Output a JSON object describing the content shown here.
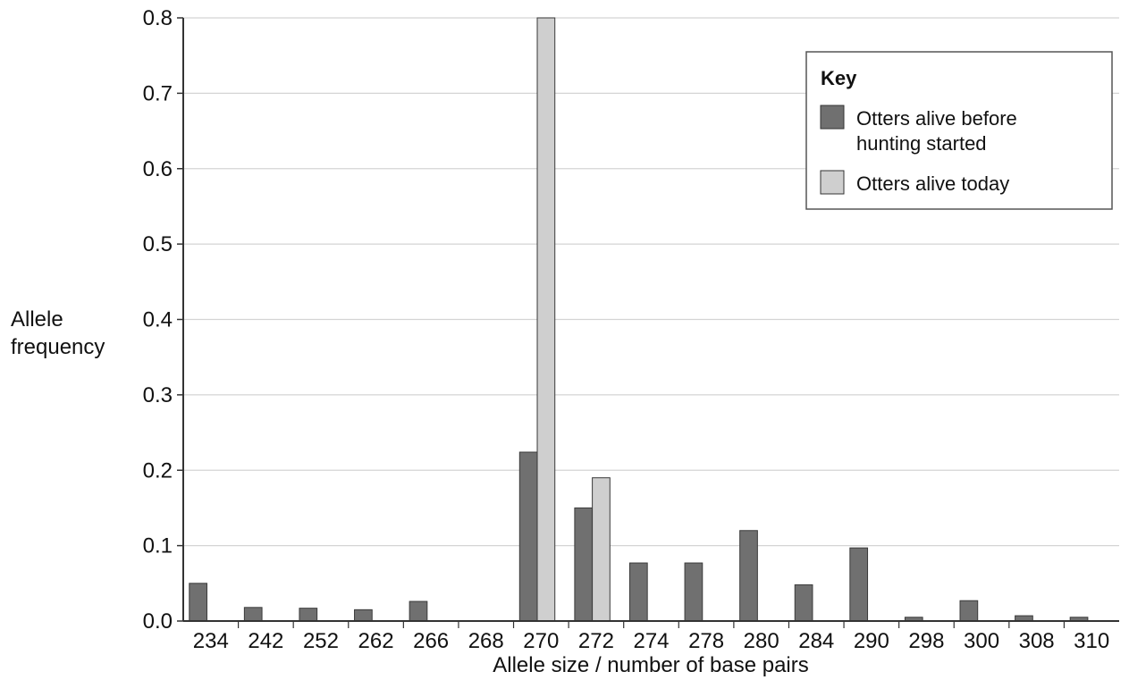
{
  "chart_data": {
    "type": "bar",
    "xlabel": "Allele size / number of base pairs",
    "ylabel": [
      "Allele",
      "frequency"
    ],
    "ylim": [
      0,
      0.8
    ],
    "yticks": [
      "0.0",
      "0.1",
      "0.2",
      "0.3",
      "0.4",
      "0.5",
      "0.6",
      "0.7",
      "0.8"
    ],
    "grid": "horizontal",
    "legend_position": "top-right",
    "categories": [
      "234",
      "242",
      "252",
      "262",
      "266",
      "268",
      "270",
      "272",
      "274",
      "278",
      "280",
      "284",
      "290",
      "298",
      "300",
      "308",
      "310"
    ],
    "series": [
      {
        "name": [
          "Otters alive before",
          "hunting started"
        ],
        "color": "#707070",
        "values": [
          0.05,
          0.018,
          0.017,
          0.015,
          0.026,
          0,
          0.224,
          0.15,
          0.077,
          0.077,
          0.12,
          0.048,
          0.097,
          0.005,
          0.027,
          0.007,
          0.005
        ]
      },
      {
        "name": "Otters alive today",
        "color": "#cfcfcf",
        "values": [
          0,
          0,
          0,
          0,
          0,
          0,
          0.8,
          0.19,
          0,
          0,
          0,
          0,
          0,
          0,
          0,
          0,
          0
        ]
      }
    ]
  },
  "legend": {
    "title": "Key"
  }
}
